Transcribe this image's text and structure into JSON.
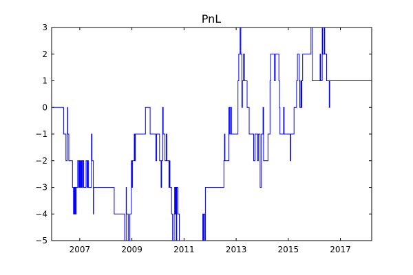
{
  "chart_data": {
    "type": "line",
    "title": "PnL",
    "xlabel": "",
    "ylabel": "",
    "xlim": [
      2005.92,
      2018.2
    ],
    "ylim": [
      -5,
      3
    ],
    "grid": false,
    "x_tick_labels": [
      "2007",
      "2009",
      "2011",
      "2013",
      "2015",
      "2017"
    ],
    "x_ticks": [
      2007,
      2009,
      2011,
      2013,
      2015,
      2017
    ],
    "y_ticks": [
      -5,
      -4,
      -3,
      -2,
      -1,
      0,
      1,
      2,
      3
    ],
    "y_tick_labels": [
      "−5",
      "−4",
      "−3",
      "−2",
      "−1",
      "0",
      "1",
      "2",
      "3"
    ],
    "line_color": "#0000ff",
    "series": [
      {
        "step": true,
        "points": [
          [
            2005.92,
            0
          ],
          [
            2006.35,
            0
          ],
          [
            2006.38,
            -1
          ],
          [
            2006.45,
            -1
          ],
          [
            2006.47,
            -2
          ],
          [
            2006.5,
            -2
          ],
          [
            2006.52,
            -1
          ],
          [
            2006.53,
            0
          ],
          [
            2006.54,
            -1
          ],
          [
            2006.56,
            -1
          ],
          [
            2006.58,
            -2
          ],
          [
            2006.7,
            -2
          ],
          [
            2006.72,
            -3
          ],
          [
            2006.75,
            -3
          ],
          [
            2006.76,
            -4
          ],
          [
            2006.78,
            -3
          ],
          [
            2006.8,
            -4
          ],
          [
            2006.82,
            -3
          ],
          [
            2006.84,
            -4
          ],
          [
            2006.86,
            -3
          ],
          [
            2006.9,
            -3
          ],
          [
            2006.92,
            -2
          ],
          [
            2006.96,
            -3
          ],
          [
            2006.98,
            -2
          ],
          [
            2007.0,
            -3
          ],
          [
            2007.02,
            -2
          ],
          [
            2007.05,
            -3
          ],
          [
            2007.07,
            -2
          ],
          [
            2007.1,
            -3
          ],
          [
            2007.12,
            -2
          ],
          [
            2007.15,
            -3
          ],
          [
            2007.22,
            -3
          ],
          [
            2007.24,
            -2
          ],
          [
            2007.28,
            -3
          ],
          [
            2007.3,
            -2
          ],
          [
            2007.33,
            -3
          ],
          [
            2007.4,
            -3
          ],
          [
            2007.45,
            -1
          ],
          [
            2007.47,
            -2
          ],
          [
            2007.5,
            -2
          ],
          [
            2007.52,
            -4
          ],
          [
            2007.53,
            -3
          ],
          [
            2007.6,
            -3
          ],
          [
            2008.3,
            -3
          ],
          [
            2008.32,
            -4
          ],
          [
            2008.7,
            -4
          ],
          [
            2008.72,
            -5
          ],
          [
            2008.76,
            -5
          ],
          [
            2008.78,
            -3
          ],
          [
            2008.79,
            -4
          ],
          [
            2008.85,
            -4
          ],
          [
            2008.86,
            -5
          ],
          [
            2008.9,
            -5
          ],
          [
            2008.92,
            -4
          ],
          [
            2008.95,
            -4
          ],
          [
            2008.98,
            -2
          ],
          [
            2009.0,
            -3
          ],
          [
            2009.02,
            -2
          ],
          [
            2009.07,
            -2
          ],
          [
            2009.09,
            -1
          ],
          [
            2009.11,
            -2
          ],
          [
            2009.13,
            -1
          ],
          [
            2009.2,
            -1
          ],
          [
            2009.5,
            -1
          ],
          [
            2009.52,
            0
          ],
          [
            2009.68,
            0
          ],
          [
            2009.7,
            -1
          ],
          [
            2009.9,
            -1
          ],
          [
            2009.92,
            -2
          ],
          [
            2009.95,
            -1
          ],
          [
            2010.05,
            -1
          ],
          [
            2010.06,
            -2
          ],
          [
            2010.1,
            -2
          ],
          [
            2010.12,
            -3
          ],
          [
            2010.14,
            -2
          ],
          [
            2010.17,
            -2
          ],
          [
            2010.18,
            0
          ],
          [
            2010.2,
            -1
          ],
          [
            2010.25,
            -1
          ],
          [
            2010.27,
            -2
          ],
          [
            2010.3,
            -2
          ],
          [
            2010.32,
            -1
          ],
          [
            2010.34,
            -2
          ],
          [
            2010.4,
            -2
          ],
          [
            2010.42,
            -3
          ],
          [
            2010.44,
            -2
          ],
          [
            2010.46,
            -3
          ],
          [
            2010.5,
            -3
          ],
          [
            2010.52,
            -4
          ],
          [
            2010.55,
            -4
          ],
          [
            2010.56,
            -5
          ],
          [
            2010.6,
            -5
          ],
          [
            2010.62,
            -4
          ],
          [
            2010.64,
            -3
          ],
          [
            2010.66,
            -4
          ],
          [
            2010.68,
            -3
          ],
          [
            2010.7,
            -5
          ],
          [
            2010.72,
            -3
          ],
          [
            2010.74,
            -3
          ],
          [
            2010.76,
            -4
          ],
          [
            2010.8,
            -4
          ],
          [
            2010.82,
            -5
          ],
          [
            2011.2,
            -5
          ],
          [
            2011.7,
            -5
          ],
          [
            2011.72,
            -4
          ],
          [
            2011.74,
            -5
          ],
          [
            2011.76,
            -4
          ],
          [
            2011.78,
            -4
          ],
          [
            2011.8,
            -5
          ],
          [
            2011.82,
            -3
          ],
          [
            2012.15,
            -3
          ],
          [
            2012.5,
            -3
          ],
          [
            2012.53,
            -2
          ],
          [
            2012.55,
            -1
          ],
          [
            2012.57,
            -2
          ],
          [
            2012.7,
            -2
          ],
          [
            2012.72,
            0
          ],
          [
            2012.75,
            -1
          ],
          [
            2012.78,
            0
          ],
          [
            2012.8,
            0
          ],
          [
            2012.82,
            -1
          ],
          [
            2013.05,
            -1
          ],
          [
            2013.07,
            1
          ],
          [
            2013.1,
            2
          ],
          [
            2013.15,
            3
          ],
          [
            2013.18,
            2
          ],
          [
            2013.22,
            0
          ],
          [
            2013.24,
            1
          ],
          [
            2013.28,
            2
          ],
          [
            2013.32,
            1
          ],
          [
            2013.4,
            1
          ],
          [
            2013.42,
            0
          ],
          [
            2013.5,
            -1
          ],
          [
            2013.65,
            -1
          ],
          [
            2013.67,
            -2
          ],
          [
            2013.7,
            -2
          ],
          [
            2013.72,
            -1
          ],
          [
            2013.8,
            -1
          ],
          [
            2013.82,
            -2
          ],
          [
            2013.85,
            -1
          ],
          [
            2013.92,
            -3
          ],
          [
            2013.97,
            -1
          ],
          [
            2014.0,
            -1
          ],
          [
            2014.03,
            0
          ],
          [
            2014.05,
            -2
          ],
          [
            2014.2,
            -2
          ],
          [
            2014.22,
            -1
          ],
          [
            2014.28,
            -1
          ],
          [
            2014.3,
            1
          ],
          [
            2014.32,
            2
          ],
          [
            2014.45,
            2
          ],
          [
            2014.47,
            1
          ],
          [
            2014.5,
            2
          ],
          [
            2014.62,
            2
          ],
          [
            2014.64,
            1
          ],
          [
            2014.66,
            0
          ],
          [
            2014.68,
            -1
          ],
          [
            2014.8,
            -1
          ],
          [
            2014.82,
            0
          ],
          [
            2014.84,
            -1
          ],
          [
            2015.05,
            -1
          ],
          [
            2015.07,
            -2
          ],
          [
            2015.09,
            -1
          ],
          [
            2015.2,
            -1
          ],
          [
            2015.22,
            0
          ],
          [
            2015.3,
            0
          ],
          [
            2015.32,
            1
          ],
          [
            2015.35,
            2
          ],
          [
            2015.4,
            2
          ],
          [
            2015.42,
            1
          ],
          [
            2015.44,
            0
          ],
          [
            2015.48,
            1
          ],
          [
            2015.5,
            0
          ],
          [
            2015.52,
            1
          ],
          [
            2015.55,
            2
          ],
          [
            2015.85,
            2
          ],
          [
            2015.87,
            3
          ],
          [
            2015.9,
            3
          ],
          [
            2015.92,
            1
          ],
          [
            2016.2,
            1
          ],
          [
            2016.22,
            2
          ],
          [
            2016.24,
            1
          ],
          [
            2016.28,
            1
          ],
          [
            2016.3,
            3
          ],
          [
            2016.32,
            2
          ],
          [
            2016.38,
            3
          ],
          [
            2016.4,
            2
          ],
          [
            2016.45,
            2
          ],
          [
            2016.47,
            1
          ],
          [
            2016.55,
            1
          ],
          [
            2016.57,
            0
          ],
          [
            2016.59,
            1
          ],
          [
            2017.5,
            1
          ],
          [
            2018.15,
            1
          ],
          [
            2018.2,
            1
          ]
        ]
      }
    ]
  }
}
